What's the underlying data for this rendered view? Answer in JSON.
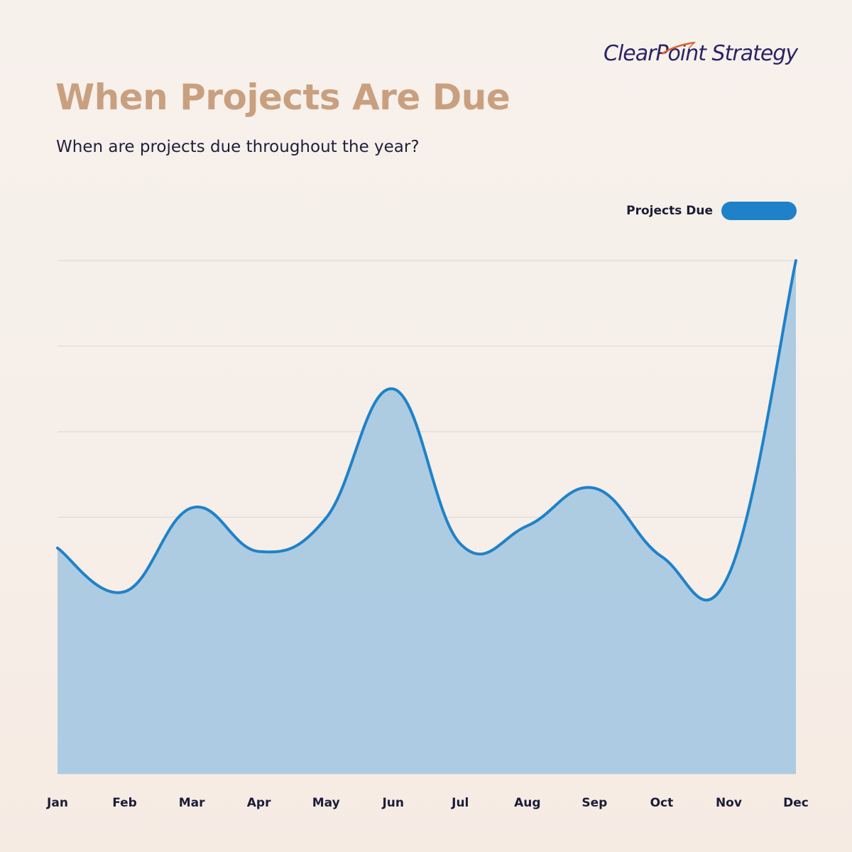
{
  "brand": {
    "logo_text": "ClearPoint Strategy"
  },
  "colors": {
    "title": "#c9a07f",
    "line": "#1f82c9",
    "area": "#a9c9e2",
    "grid": "#dcd6d2",
    "text": "#1c1c38"
  },
  "chart_data": {
    "type": "area",
    "title": "When Projects Are Due",
    "subtitle": "When are projects due throughout the year?",
    "xlabel": "",
    "ylabel": "",
    "categories": [
      "Jan",
      "Feb",
      "Mar",
      "Apr",
      "May",
      "Jun",
      "Jul",
      "Aug",
      "Sep",
      "Oct",
      "Nov",
      "Dec"
    ],
    "series": [
      {
        "name": "Projects Due",
        "values": [
          2.64,
          2.13,
          3.11,
          2.6,
          2.99,
          4.5,
          2.69,
          2.9,
          3.34,
          2.54,
          2.33,
          6.0
        ]
      }
    ],
    "ylim": [
      0,
      6
    ],
    "grid": true,
    "legend": "top-right"
  }
}
